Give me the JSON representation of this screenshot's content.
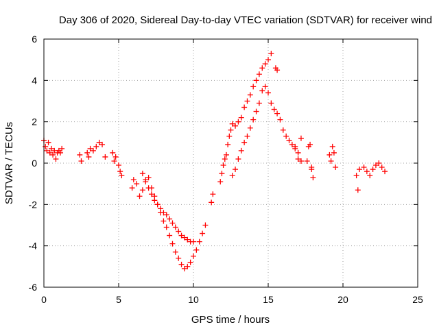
{
  "chart_data": {
    "type": "scatter",
    "title": "Day 306 of 2020, Sidereal Day-to-day VTEC variation (SDTVAR) for receiver wind",
    "xlabel": "GPS time / hours",
    "ylabel": "SDTVAR / TECUs",
    "xlim": [
      0,
      25
    ],
    "ylim": [
      -6,
      6
    ],
    "xticks": [
      0,
      5,
      10,
      15,
      20,
      25
    ],
    "yticks": [
      -6,
      -4,
      -2,
      0,
      2,
      4,
      6
    ],
    "grid": true,
    "marker": "+",
    "series": [
      {
        "name": "SDTVAR",
        "color": "#ff0000",
        "x": [
          0.0,
          0.1,
          0.2,
          0.3,
          0.4,
          0.5,
          0.6,
          0.7,
          0.8,
          0.9,
          1.0,
          1.1,
          1.2,
          2.4,
          2.5,
          2.9,
          3.0,
          3.1,
          3.3,
          3.5,
          3.7,
          3.9,
          4.1,
          4.6,
          4.7,
          4.8,
          5.0,
          5.1,
          5.2,
          5.9,
          6.0,
          6.2,
          6.4,
          6.6,
          6.8,
          7.0,
          7.2,
          7.4,
          7.6,
          7.8,
          8.0,
          8.2,
          8.4,
          8.6,
          8.8,
          9.0,
          9.2,
          9.4,
          9.6,
          9.8,
          10.0,
          10.2,
          10.4,
          10.6,
          10.8,
          6.6,
          6.8,
          7.0,
          7.2,
          7.4,
          7.6,
          7.8,
          8.0,
          8.2,
          8.4,
          8.6,
          8.8,
          9.0,
          9.2,
          9.4,
          9.6,
          9.8,
          10.0,
          11.2,
          11.3,
          11.8,
          11.9,
          12.0,
          12.1,
          12.2,
          12.3,
          12.4,
          12.5,
          12.6,
          12.8,
          13.0,
          13.2,
          13.4,
          13.6,
          13.8,
          14.0,
          14.2,
          14.4,
          14.6,
          14.8,
          15.0,
          15.2,
          12.6,
          12.8,
          13.0,
          13.2,
          13.4,
          13.6,
          13.8,
          14.0,
          14.2,
          14.4,
          14.6,
          14.8,
          15.0,
          15.2,
          15.4,
          15.6,
          15.8,
          16.0,
          16.2,
          16.4,
          16.6,
          16.8,
          17.0,
          17.2,
          15.5,
          15.6,
          16.8,
          17.0,
          17.2,
          17.6,
          17.7,
          17.9,
          17.8,
          17.9,
          18.0,
          19.1,
          19.2,
          19.3,
          19.4,
          19.5,
          20.9,
          21.0,
          21.1,
          21.4,
          21.6,
          21.8,
          22.0,
          22.2,
          22.4,
          22.6,
          22.8
        ],
        "y": [
          1.1,
          0.8,
          0.6,
          1.0,
          0.5,
          0.7,
          0.4,
          0.6,
          0.2,
          0.5,
          0.6,
          0.5,
          0.7,
          0.4,
          0.1,
          0.5,
          0.3,
          0.7,
          0.6,
          0.8,
          1.0,
          0.9,
          0.3,
          0.5,
          0.1,
          0.3,
          -0.1,
          -0.4,
          -0.6,
          -1.2,
          -0.8,
          -1.0,
          -1.6,
          -1.3,
          -0.9,
          -0.7,
          -1.2,
          -1.6,
          -2.0,
          -2.4,
          -2.8,
          -3.1,
          -3.5,
          -3.9,
          -4.3,
          -4.6,
          -4.9,
          -5.1,
          -5.0,
          -4.8,
          -4.5,
          -4.2,
          -3.8,
          -3.4,
          -3.0,
          -0.5,
          -0.8,
          -1.2,
          -1.5,
          -1.8,
          -2.0,
          -2.2,
          -2.4,
          -2.5,
          -2.7,
          -2.9,
          -3.1,
          -3.3,
          -3.5,
          -3.6,
          -3.7,
          -3.8,
          -3.8,
          -1.9,
          -1.5,
          -0.9,
          -0.5,
          -0.1,
          0.2,
          0.4,
          0.9,
          1.3,
          1.6,
          1.9,
          1.8,
          2.0,
          2.2,
          2.7,
          3.0,
          3.3,
          3.7,
          4.0,
          4.3,
          4.6,
          4.8,
          5.0,
          5.3,
          -0.6,
          -0.3,
          0.2,
          0.6,
          1.0,
          1.3,
          1.7,
          2.1,
          2.5,
          2.9,
          3.5,
          3.7,
          3.4,
          2.9,
          2.6,
          2.4,
          2.1,
          1.6,
          1.3,
          1.1,
          0.9,
          0.7,
          0.5,
          0.1,
          4.6,
          4.5,
          0.8,
          0.2,
          1.2,
          0.1,
          0.8,
          -0.2,
          0.9,
          -0.3,
          -0.7,
          0.4,
          0.1,
          0.8,
          0.5,
          -0.2,
          -0.6,
          -1.3,
          -0.3,
          -0.2,
          -0.4,
          -0.6,
          -0.3,
          -0.1,
          0.0,
          -0.2,
          -0.4
        ]
      }
    ]
  }
}
